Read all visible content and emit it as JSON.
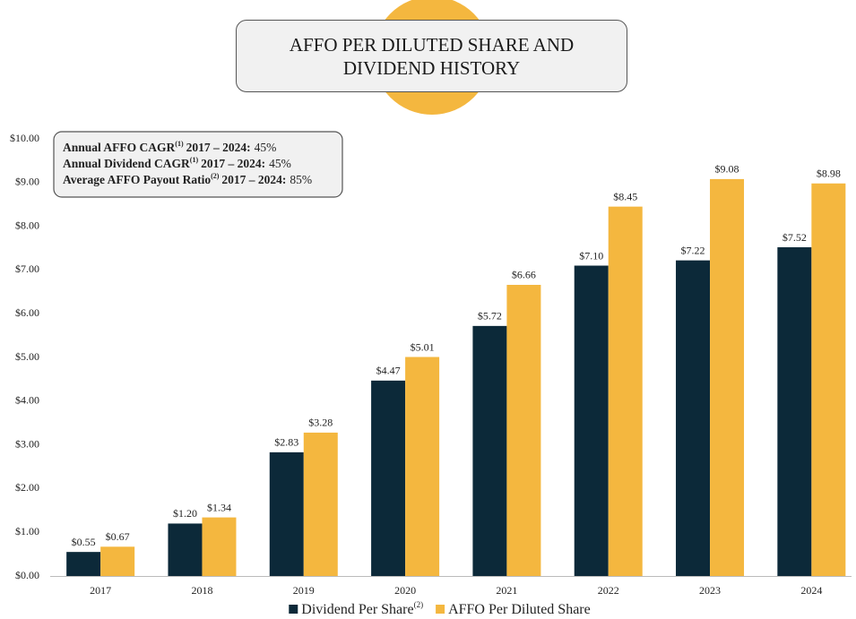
{
  "chart_data": {
    "type": "bar",
    "title": "AFFO PER DILUTED SHARE AND DIVIDEND HISTORY",
    "categories": [
      "2017",
      "2018",
      "2019",
      "2020",
      "2021",
      "2022",
      "2023",
      "2024"
    ],
    "series": [
      {
        "name": "Dividend Per Share",
        "name_note": "(2)",
        "color": "#0c2939",
        "values": [
          0.55,
          1.2,
          2.83,
          4.47,
          5.72,
          7.1,
          7.22,
          7.52
        ],
        "value_labels": [
          "$0.55",
          "$1.20",
          "$2.83",
          "$4.47",
          "$5.72",
          "$7.10",
          "$7.22",
          "$7.52"
        ]
      },
      {
        "name": "AFFO Per Diluted Share",
        "color": "#f4b73f",
        "values": [
          0.67,
          1.34,
          3.28,
          5.01,
          6.66,
          8.45,
          9.08,
          8.98
        ],
        "value_labels": [
          "$0.67",
          "$1.34",
          "$3.28",
          "$5.01",
          "$6.66",
          "$8.45",
          "$9.08",
          "$8.98"
        ]
      }
    ],
    "ylim": [
      0,
      10
    ],
    "yticks": [
      {
        "value": 0,
        "label": "$0.00"
      },
      {
        "value": 1,
        "label": "$1.00"
      },
      {
        "value": 2,
        "label": "$2.00"
      },
      {
        "value": 3,
        "label": "$3.00"
      },
      {
        "value": 4,
        "label": "$4.00"
      },
      {
        "value": 5,
        "label": "$5.00"
      },
      {
        "value": 6,
        "label": "$6.00"
      },
      {
        "value": 7,
        "label": "$7.00"
      },
      {
        "value": 8,
        "label": "$8.00"
      },
      {
        "value": 9,
        "label": "$9.00"
      },
      {
        "value": 10,
        "label": "$10.00"
      }
    ],
    "grid": false,
    "legend": "bottom",
    "annotations": [
      {
        "label": "Annual AFFO CAGR",
        "note": "(1)",
        "period": "2017 – 2024:",
        "value": "45%"
      },
      {
        "label": "Annual Dividend CAGR",
        "note": "(1)",
        "period": "2017 – 2024:",
        "value": "45%"
      },
      {
        "label": "Average AFFO Payout Ratio",
        "note": "(2)",
        "period": "2017 – 2024:",
        "value": "85%"
      }
    ]
  }
}
